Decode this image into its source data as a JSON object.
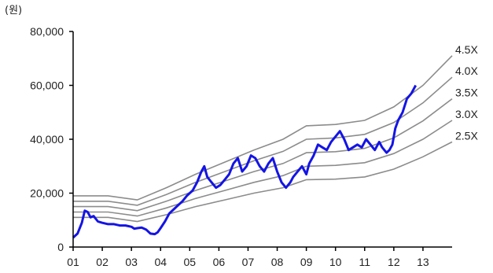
{
  "chart_data": {
    "type": "line",
    "unit_label": "(원)",
    "xlabel": "",
    "ylabel": "",
    "x_ticks": [
      "01",
      "02",
      "03",
      "04",
      "05",
      "06",
      "07",
      "08",
      "09",
      "10",
      "11",
      "12",
      "13"
    ],
    "xlim": [
      2001.0,
      2014.0
    ],
    "ylim": [
      0,
      80000
    ],
    "y_ticks": [
      0,
      20000,
      40000,
      60000,
      80000
    ],
    "y_tick_labels": [
      "0",
      "20,000",
      "40,000",
      "60,000",
      "80,000"
    ],
    "grid": false,
    "bands": [
      {
        "name": "4.5X",
        "x": [
          2001.0,
          2002.2,
          2003.2,
          2004.2,
          2005.2,
          2006.2,
          2007.2,
          2008.2,
          2009.0,
          2010.0,
          2011.0,
          2012.0,
          2013.0,
          2014.0
        ],
        "y": [
          19000,
          19000,
          17500,
          22000,
          27000,
          31500,
          36000,
          40000,
          45000,
          45500,
          47000,
          52000,
          60000,
          71000
        ]
      },
      {
        "name": "4.0X",
        "x": [
          2001.0,
          2002.2,
          2003.2,
          2004.2,
          2005.2,
          2006.2,
          2007.2,
          2008.2,
          2009.0,
          2010.0,
          2011.0,
          2012.0,
          2013.0,
          2014.0
        ],
        "y": [
          17000,
          17000,
          15500,
          19500,
          24000,
          28000,
          32000,
          35500,
          40000,
          40500,
          41800,
          46200,
          53500,
          63000
        ]
      },
      {
        "name": "3.5X",
        "x": [
          2001.0,
          2002.2,
          2003.2,
          2004.2,
          2005.2,
          2006.2,
          2007.2,
          2008.2,
          2009.0,
          2010.0,
          2011.0,
          2012.0,
          2013.0,
          2014.0
        ],
        "y": [
          15000,
          15000,
          13500,
          17000,
          21000,
          24500,
          28000,
          31000,
          35000,
          35400,
          36600,
          40500,
          46800,
          55000
        ]
      },
      {
        "name": "3.0X",
        "x": [
          2001.0,
          2002.2,
          2003.2,
          2004.2,
          2005.2,
          2006.2,
          2007.2,
          2008.2,
          2009.0,
          2010.0,
          2011.0,
          2012.0,
          2013.0,
          2014.0
        ],
        "y": [
          13000,
          13000,
          11500,
          14500,
          18000,
          21000,
          24000,
          26500,
          30000,
          30300,
          31300,
          34700,
          40000,
          47000
        ]
      },
      {
        "name": "2.5X",
        "x": [
          2001.0,
          2002.2,
          2003.2,
          2004.2,
          2005.2,
          2006.2,
          2007.2,
          2008.2,
          2009.0,
          2010.0,
          2011.0,
          2012.0,
          2013.0,
          2014.0
        ],
        "y": [
          11000,
          11000,
          9500,
          12000,
          15000,
          17500,
          20000,
          22000,
          25000,
          25200,
          26000,
          28900,
          33500,
          39000
        ]
      }
    ],
    "price": {
      "x": [
        2001.0,
        2001.15,
        2001.3,
        2001.4,
        2001.5,
        2001.6,
        2001.7,
        2001.85,
        2002.0,
        2002.2,
        2002.4,
        2002.6,
        2002.8,
        2003.0,
        2003.1,
        2003.2,
        2003.35,
        2003.5,
        2003.65,
        2003.8,
        2003.9,
        2004.0,
        2004.15,
        2004.3,
        2004.45,
        2004.6,
        2004.75,
        2004.9,
        2005.1,
        2005.25,
        2005.4,
        2005.5,
        2005.6,
        2005.75,
        2005.9,
        2006.05,
        2006.2,
        2006.35,
        2006.5,
        2006.65,
        2006.8,
        2006.95,
        2007.1,
        2007.25,
        2007.4,
        2007.55,
        2007.7,
        2007.85,
        2008.0,
        2008.15,
        2008.3,
        2008.45,
        2008.55,
        2008.7,
        2008.85,
        2009.0,
        2009.1,
        2009.25,
        2009.4,
        2009.55,
        2009.7,
        2009.85,
        2010.0,
        2010.15,
        2010.3,
        2010.45,
        2010.6,
        2010.75,
        2010.9,
        2011.05,
        2011.2,
        2011.35,
        2011.5,
        2011.6,
        2011.75,
        2011.85,
        2011.95,
        2012.05,
        2012.15,
        2012.3,
        2012.45,
        2012.6,
        2012.75
      ],
      "y": [
        3500,
        5000,
        9000,
        13500,
        13000,
        11000,
        11500,
        9500,
        9000,
        8500,
        8500,
        8000,
        8000,
        7500,
        6800,
        7000,
        7200,
        6500,
        5000,
        4800,
        5500,
        7000,
        9500,
        12500,
        14000,
        15500,
        17000,
        19000,
        21000,
        24000,
        28000,
        30000,
        26000,
        24000,
        22000,
        23000,
        25000,
        27000,
        31000,
        33000,
        28000,
        30000,
        34000,
        33000,
        30000,
        28000,
        31000,
        33000,
        28000,
        24000,
        22000,
        24000,
        26000,
        28000,
        30000,
        27000,
        31000,
        34000,
        38000,
        37000,
        36000,
        39000,
        41000,
        43000,
        40000,
        36000,
        37000,
        38000,
        37000,
        40000,
        38000,
        36000,
        39000,
        37000,
        35000,
        36000,
        38000,
        44000,
        47000,
        50000,
        55000,
        57000,
        60000
      ]
    }
  }
}
